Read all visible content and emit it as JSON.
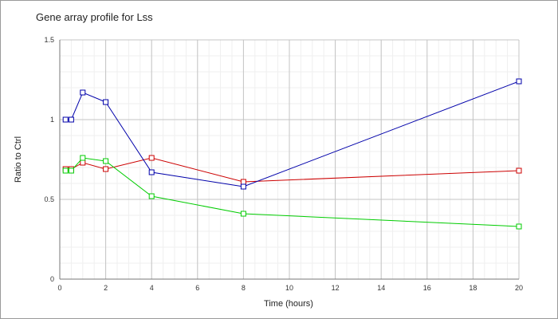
{
  "chart_data": {
    "type": "line",
    "title": "Gene array profile for Lss",
    "xlabel": "Time (hours)",
    "ylabel": "Ratio to Ctrl",
    "xlim": [
      0,
      20
    ],
    "ylim": [
      0,
      1.5
    ],
    "xticks": [
      "0",
      "2",
      "4",
      "6",
      "8",
      "10",
      "12",
      "14",
      "16",
      "18",
      "20"
    ],
    "yticks": [
      "0",
      "0.5",
      "1",
      "1.5"
    ],
    "grid": true,
    "x": [
      0.25,
      0.5,
      1,
      2,
      4,
      8,
      20
    ],
    "series": [
      {
        "color": "#0000aa",
        "values": [
          1.0,
          1.0,
          1.17,
          1.11,
          0.67,
          0.58,
          1.24
        ]
      },
      {
        "color": "#cc0000",
        "values": [
          0.69,
          0.69,
          0.73,
          0.69,
          0.76,
          0.61,
          0.68
        ]
      },
      {
        "color": "#00cc00",
        "values": [
          0.68,
          0.68,
          0.76,
          0.74,
          0.52,
          0.41,
          0.33
        ]
      }
    ]
  }
}
